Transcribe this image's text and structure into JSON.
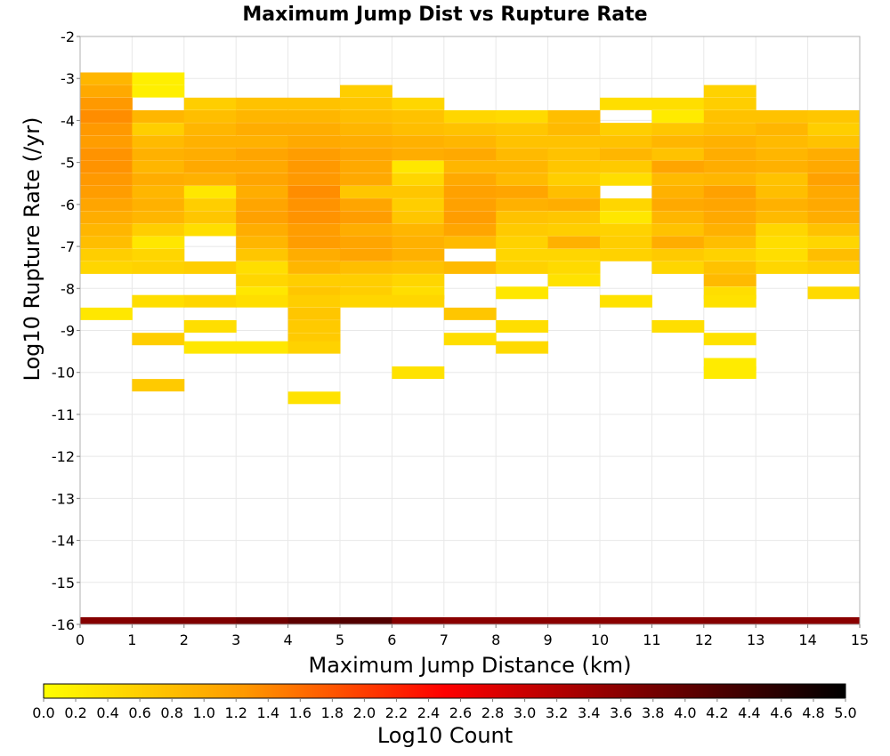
{
  "chart_data": {
    "type": "heatmap",
    "title": "Maximum Jump Dist vs Rupture Rate",
    "xlabel": "Maximum Jump Distance (km)",
    "ylabel": "Log10 Rupture Rate (/yr)",
    "xlim": [
      0,
      15
    ],
    "ylim": [
      -16,
      -2
    ],
    "x_ticks": [
      "0",
      "1",
      "2",
      "3",
      "4",
      "5",
      "6",
      "7",
      "8",
      "9",
      "10",
      "11",
      "12",
      "13",
      "14",
      "15"
    ],
    "y_ticks": [
      "-2",
      "-3",
      "-4",
      "-5",
      "-6",
      "-7",
      "-8",
      "-9",
      "-10",
      "-11",
      "-12",
      "-13",
      "-14",
      "-15",
      "-16"
    ],
    "grid": true,
    "colorbar": {
      "label": "Log10 Count",
      "range": [
        0,
        5
      ],
      "ticks": [
        "0.0",
        "0.2",
        "0.4",
        "0.6",
        "0.8",
        "1.0",
        "1.2",
        "1.4",
        "1.6",
        "1.8",
        "2.0",
        "2.2",
        "2.4",
        "2.6",
        "2.8",
        "3.0",
        "3.2",
        "3.4",
        "3.6",
        "3.8",
        "4.0",
        "4.2",
        "4.4",
        "4.6",
        "4.8",
        "5.0"
      ],
      "colors": [
        "#ffff00",
        "#ff9900",
        "#ff0000",
        "#7a0000",
        "#000000"
      ]
    },
    "bin_width_x": 1,
    "bin_height_y": 0.286,
    "cells": [
      [
        0,
        -3.0,
        0.9
      ],
      [
        0,
        -3.3,
        1.05
      ],
      [
        0,
        -3.6,
        1.25
      ],
      [
        0,
        -3.9,
        1.35
      ],
      [
        0,
        -4.2,
        1.25
      ],
      [
        0,
        -4.5,
        1.2
      ],
      [
        0,
        -4.8,
        1.3
      ],
      [
        0,
        -5.1,
        1.3
      ],
      [
        0,
        -5.4,
        1.25
      ],
      [
        0,
        -5.7,
        1.2
      ],
      [
        0,
        -6.0,
        1.1
      ],
      [
        0,
        -6.3,
        1.0
      ],
      [
        0,
        -6.6,
        0.9
      ],
      [
        0,
        -6.9,
        0.8
      ],
      [
        0,
        -7.2,
        0.6
      ],
      [
        0,
        -7.5,
        0.5
      ],
      [
        0,
        -8.6,
        0.3
      ],
      [
        1,
        -3.0,
        0.2
      ],
      [
        1,
        -3.3,
        0.2
      ],
      [
        1,
        -3.9,
        0.9
      ],
      [
        1,
        -4.2,
        0.6
      ],
      [
        1,
        -4.5,
        0.85
      ],
      [
        1,
        -4.8,
        0.95
      ],
      [
        1,
        -5.1,
        0.9
      ],
      [
        1,
        -5.4,
        1.0
      ],
      [
        1,
        -5.7,
        0.9
      ],
      [
        1,
        -6.0,
        0.95
      ],
      [
        1,
        -6.3,
        0.9
      ],
      [
        1,
        -6.6,
        0.6
      ],
      [
        1,
        -6.9,
        0.3
      ],
      [
        1,
        -7.2,
        0.5
      ],
      [
        1,
        -7.5,
        0.55
      ],
      [
        1,
        -8.3,
        0.4
      ],
      [
        1,
        -9.2,
        0.6
      ],
      [
        1,
        -10.3,
        0.65
      ],
      [
        2,
        -3.6,
        0.6
      ],
      [
        2,
        -3.9,
        0.8
      ],
      [
        2,
        -4.2,
        0.9
      ],
      [
        2,
        -4.5,
        0.95
      ],
      [
        2,
        -4.8,
        1.0
      ],
      [
        2,
        -5.1,
        1.05
      ],
      [
        2,
        -5.4,
        0.95
      ],
      [
        2,
        -5.7,
        0.3
      ],
      [
        2,
        -6.0,
        0.6
      ],
      [
        2,
        -6.3,
        0.7
      ],
      [
        2,
        -6.6,
        0.4
      ],
      [
        2,
        -7.5,
        0.6
      ],
      [
        2,
        -8.3,
        0.5
      ],
      [
        2,
        -8.9,
        0.4
      ],
      [
        2,
        -9.4,
        0.3
      ],
      [
        3,
        -3.6,
        0.75
      ],
      [
        3,
        -3.9,
        0.9
      ],
      [
        3,
        -4.2,
        1.0
      ],
      [
        3,
        -4.5,
        0.95
      ],
      [
        3,
        -4.8,
        1.1
      ],
      [
        3,
        -5.1,
        1.05
      ],
      [
        3,
        -5.4,
        1.1
      ],
      [
        3,
        -5.7,
        1.0
      ],
      [
        3,
        -6.0,
        1.1
      ],
      [
        3,
        -6.3,
        1.15
      ],
      [
        3,
        -6.6,
        1.0
      ],
      [
        3,
        -6.9,
        0.9
      ],
      [
        3,
        -7.2,
        0.7
      ],
      [
        3,
        -7.5,
        0.4
      ],
      [
        3,
        -7.8,
        0.5
      ],
      [
        3,
        -8.1,
        0.3
      ],
      [
        3,
        -8.3,
        0.4
      ],
      [
        3,
        -9.4,
        0.3
      ],
      [
        4,
        -3.6,
        0.75
      ],
      [
        4,
        -3.9,
        0.9
      ],
      [
        4,
        -4.2,
        1.0
      ],
      [
        4,
        -4.5,
        1.05
      ],
      [
        4,
        -4.8,
        1.2
      ],
      [
        4,
        -5.1,
        1.25
      ],
      [
        4,
        -5.4,
        1.25
      ],
      [
        4,
        -5.7,
        1.35
      ],
      [
        4,
        -6.0,
        1.3
      ],
      [
        4,
        -6.3,
        1.3
      ],
      [
        4,
        -6.6,
        1.2
      ],
      [
        4,
        -6.9,
        1.2
      ],
      [
        4,
        -7.2,
        1.0
      ],
      [
        4,
        -7.5,
        0.9
      ],
      [
        4,
        -7.8,
        0.6
      ],
      [
        4,
        -8.1,
        0.7
      ],
      [
        4,
        -8.3,
        0.6
      ],
      [
        4,
        -8.6,
        0.7
      ],
      [
        4,
        -8.9,
        0.65
      ],
      [
        4,
        -9.2,
        0.65
      ],
      [
        4,
        -9.4,
        0.55
      ],
      [
        4,
        -10.6,
        0.35
      ],
      [
        5,
        -3.3,
        0.6
      ],
      [
        5,
        -3.6,
        0.7
      ],
      [
        5,
        -3.9,
        0.8
      ],
      [
        5,
        -4.2,
        0.9
      ],
      [
        5,
        -4.5,
        1.0
      ],
      [
        5,
        -4.8,
        1.1
      ],
      [
        5,
        -5.1,
        1.05
      ],
      [
        5,
        -5.4,
        1.05
      ],
      [
        5,
        -5.7,
        0.7
      ],
      [
        5,
        -6.0,
        1.1
      ],
      [
        5,
        -6.3,
        1.2
      ],
      [
        5,
        -6.6,
        1.0
      ],
      [
        5,
        -6.9,
        1.1
      ],
      [
        5,
        -7.2,
        1.1
      ],
      [
        5,
        -7.5,
        0.8
      ],
      [
        5,
        -7.8,
        0.6
      ],
      [
        5,
        -8.1,
        0.6
      ],
      [
        5,
        -8.3,
        0.5
      ],
      [
        6,
        -3.6,
        0.5
      ],
      [
        6,
        -3.9,
        0.75
      ],
      [
        6,
        -4.2,
        0.8
      ],
      [
        6,
        -4.5,
        0.95
      ],
      [
        6,
        -4.8,
        1.0
      ],
      [
        6,
        -5.1,
        0.3
      ],
      [
        6,
        -5.4,
        0.5
      ],
      [
        6,
        -5.7,
        0.7
      ],
      [
        6,
        -6.0,
        0.6
      ],
      [
        6,
        -6.3,
        0.7
      ],
      [
        6,
        -6.6,
        0.9
      ],
      [
        6,
        -6.9,
        0.95
      ],
      [
        6,
        -7.2,
        0.95
      ],
      [
        6,
        -7.5,
        0.75
      ],
      [
        6,
        -7.8,
        0.5
      ],
      [
        6,
        -8.1,
        0.4
      ],
      [
        6,
        -8.3,
        0.5
      ],
      [
        6,
        -10.0,
        0.35
      ],
      [
        7,
        -3.9,
        0.5
      ],
      [
        7,
        -4.2,
        0.75
      ],
      [
        7,
        -4.5,
        0.9
      ],
      [
        7,
        -4.8,
        1.05
      ],
      [
        7,
        -5.1,
        0.9
      ],
      [
        7,
        -5.4,
        1.05
      ],
      [
        7,
        -5.7,
        1.15
      ],
      [
        7,
        -6.0,
        1.15
      ],
      [
        7,
        -6.3,
        1.2
      ],
      [
        7,
        -6.6,
        1.1
      ],
      [
        7,
        -6.9,
        0.85
      ],
      [
        7,
        -7.5,
        0.85
      ],
      [
        7,
        -8.6,
        0.7
      ],
      [
        7,
        -9.2,
        0.4
      ],
      [
        8,
        -3.9,
        0.45
      ],
      [
        8,
        -4.2,
        0.7
      ],
      [
        8,
        -4.5,
        0.75
      ],
      [
        8,
        -4.8,
        0.85
      ],
      [
        8,
        -5.1,
        0.9
      ],
      [
        8,
        -5.4,
        0.85
      ],
      [
        8,
        -5.7,
        1.1
      ],
      [
        8,
        -6.0,
        0.95
      ],
      [
        8,
        -6.3,
        0.75
      ],
      [
        8,
        -6.6,
        0.65
      ],
      [
        8,
        -6.9,
        0.55
      ],
      [
        8,
        -7.2,
        0.5
      ],
      [
        8,
        -7.5,
        0.55
      ],
      [
        8,
        -8.1,
        0.3
      ],
      [
        8,
        -8.9,
        0.4
      ],
      [
        8,
        -9.4,
        0.45
      ],
      [
        9,
        -3.9,
        0.8
      ],
      [
        9,
        -4.2,
        0.85
      ],
      [
        9,
        -4.5,
        0.75
      ],
      [
        9,
        -4.8,
        0.75
      ],
      [
        9,
        -5.1,
        0.7
      ],
      [
        9,
        -5.4,
        0.6
      ],
      [
        9,
        -5.7,
        0.8
      ],
      [
        9,
        -6.0,
        1.0
      ],
      [
        9,
        -6.3,
        0.7
      ],
      [
        9,
        -6.6,
        0.6
      ],
      [
        9,
        -6.9,
        0.95
      ],
      [
        9,
        -7.2,
        0.5
      ],
      [
        9,
        -7.5,
        0.45
      ],
      [
        9,
        -7.8,
        0.35
      ],
      [
        10,
        -3.6,
        0.4
      ],
      [
        10,
        -4.2,
        0.6
      ],
      [
        10,
        -4.5,
        0.75
      ],
      [
        10,
        -4.8,
        0.9
      ],
      [
        10,
        -5.1,
        0.65
      ],
      [
        10,
        -5.4,
        0.4
      ],
      [
        10,
        -6.0,
        0.5
      ],
      [
        10,
        -6.3,
        0.3
      ],
      [
        10,
        -6.6,
        0.55
      ],
      [
        10,
        -6.9,
        0.6
      ],
      [
        10,
        -7.2,
        0.55
      ],
      [
        10,
        -8.3,
        0.35
      ],
      [
        11,
        -3.6,
        0.4
      ],
      [
        11,
        -3.9,
        0.25
      ],
      [
        11,
        -4.2,
        0.7
      ],
      [
        11,
        -4.5,
        0.9
      ],
      [
        11,
        -4.8,
        0.75
      ],
      [
        11,
        -5.1,
        1.1
      ],
      [
        11,
        -5.4,
        0.85
      ],
      [
        11,
        -5.7,
        0.95
      ],
      [
        11,
        -6.0,
        1.05
      ],
      [
        11,
        -6.3,
        0.9
      ],
      [
        11,
        -6.6,
        0.75
      ],
      [
        11,
        -6.9,
        1.0
      ],
      [
        11,
        -7.2,
        0.65
      ],
      [
        11,
        -7.5,
        0.5
      ],
      [
        11,
        -8.9,
        0.4
      ],
      [
        12,
        -3.3,
        0.55
      ],
      [
        12,
        -3.6,
        0.6
      ],
      [
        12,
        -3.9,
        0.75
      ],
      [
        12,
        -4.2,
        0.8
      ],
      [
        12,
        -4.5,
        0.95
      ],
      [
        12,
        -4.8,
        1.0
      ],
      [
        12,
        -5.1,
        1.0
      ],
      [
        12,
        -5.4,
        0.9
      ],
      [
        12,
        -5.7,
        1.15
      ],
      [
        12,
        -6.0,
        1.1
      ],
      [
        12,
        -6.3,
        1.05
      ],
      [
        12,
        -6.6,
        0.95
      ],
      [
        12,
        -6.9,
        0.8
      ],
      [
        12,
        -7.2,
        0.55
      ],
      [
        12,
        -7.5,
        0.75
      ],
      [
        12,
        -7.8,
        0.85
      ],
      [
        12,
        -8.1,
        0.4
      ],
      [
        12,
        -8.3,
        0.35
      ],
      [
        12,
        -9.2,
        0.35
      ],
      [
        12,
        -9.8,
        0.25
      ],
      [
        12,
        -10.0,
        0.25
      ],
      [
        13,
        -3.9,
        0.75
      ],
      [
        13,
        -4.2,
        0.9
      ],
      [
        13,
        -4.5,
        0.85
      ],
      [
        13,
        -4.8,
        0.9
      ],
      [
        13,
        -5.1,
        0.95
      ],
      [
        13,
        -5.4,
        0.75
      ],
      [
        13,
        -5.7,
        0.8
      ],
      [
        13,
        -6.0,
        0.95
      ],
      [
        13,
        -6.3,
        0.85
      ],
      [
        13,
        -6.6,
        0.5
      ],
      [
        13,
        -6.9,
        0.4
      ],
      [
        13,
        -7.2,
        0.4
      ],
      [
        13,
        -7.5,
        0.5
      ],
      [
        14,
        -3.9,
        0.7
      ],
      [
        14,
        -4.2,
        0.6
      ],
      [
        14,
        -4.5,
        0.75
      ],
      [
        14,
        -4.8,
        1.0
      ],
      [
        14,
        -5.1,
        1.05
      ],
      [
        14,
        -5.4,
        1.15
      ],
      [
        14,
        -5.7,
        1.05
      ],
      [
        14,
        -6.0,
        1.05
      ],
      [
        14,
        -6.3,
        1.0
      ],
      [
        14,
        -6.6,
        0.75
      ],
      [
        14,
        -6.9,
        0.5
      ],
      [
        14,
        -7.2,
        0.8
      ],
      [
        14,
        -7.5,
        0.6
      ],
      [
        14,
        -8.1,
        0.45
      ]
    ],
    "bottom_band": [
      [
        0,
        3.65
      ],
      [
        1,
        3.7
      ],
      [
        2,
        3.7
      ],
      [
        3,
        3.85
      ],
      [
        4,
        4.05
      ],
      [
        5,
        4.15
      ],
      [
        6,
        3.65
      ],
      [
        7,
        3.6
      ],
      [
        8,
        3.6
      ],
      [
        9,
        3.6
      ],
      [
        10,
        3.6
      ],
      [
        11,
        3.6
      ],
      [
        12,
        3.65
      ],
      [
        13,
        3.6
      ],
      [
        14,
        3.6
      ]
    ]
  }
}
